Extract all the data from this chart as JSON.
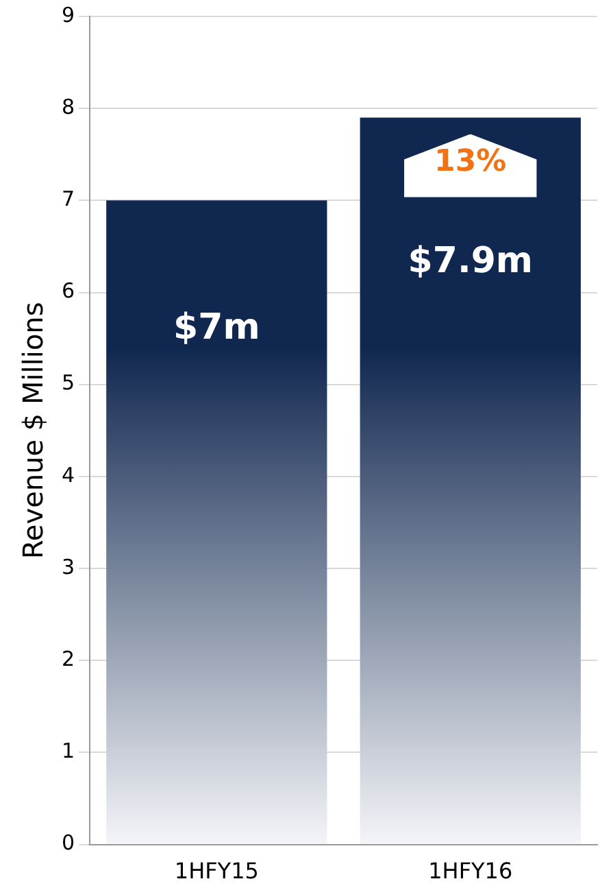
{
  "chart_data": {
    "type": "bar",
    "ylabel": "Revenue $ Millions",
    "categories": [
      "1HFY15",
      "1HFY16"
    ],
    "values": [
      7,
      7.9
    ],
    "value_labels": [
      "$7m",
      "$7.9m"
    ],
    "color": "#10274f",
    "ylim": [
      0,
      9
    ],
    "yticks": [
      0,
      1,
      2,
      3,
      4,
      5,
      6,
      7,
      8,
      9
    ],
    "grid": "y",
    "legend": false,
    "annotations": [
      "13%"
    ]
  }
}
